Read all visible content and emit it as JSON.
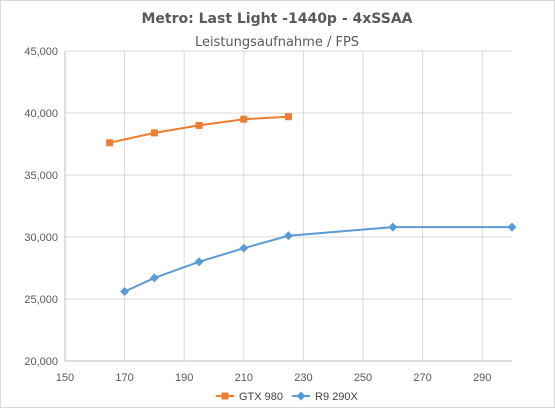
{
  "chart_data": {
    "type": "line",
    "title": "Metro: Last Light -1440p - 4xSSAA",
    "subtitle": "Leistungsaufnahme / FPS",
    "xlabel": "",
    "ylabel": "",
    "xlim": [
      150,
      300
    ],
    "ylim": [
      20,
      45
    ],
    "x_ticks": [
      "150",
      "170",
      "190",
      "210",
      "230",
      "250",
      "270",
      "290"
    ],
    "y_ticks": [
      "20,000",
      "25,000",
      "30,000",
      "35,000",
      "40,000",
      "45,000"
    ],
    "grid": true,
    "legend_position": "bottom",
    "series": [
      {
        "name": "GTX 980",
        "color": "#ed7d31",
        "marker": "square",
        "x": [
          165,
          180,
          195,
          210,
          225
        ],
        "y": [
          37.6,
          38.4,
          39.0,
          39.5,
          39.7
        ]
      },
      {
        "name": "R9 290X",
        "color": "#5b9bd5",
        "marker": "diamond",
        "x": [
          170,
          180,
          195,
          210,
          225,
          260,
          300
        ],
        "y": [
          25.6,
          26.7,
          28.0,
          29.1,
          30.1,
          30.8,
          30.8
        ]
      }
    ]
  }
}
